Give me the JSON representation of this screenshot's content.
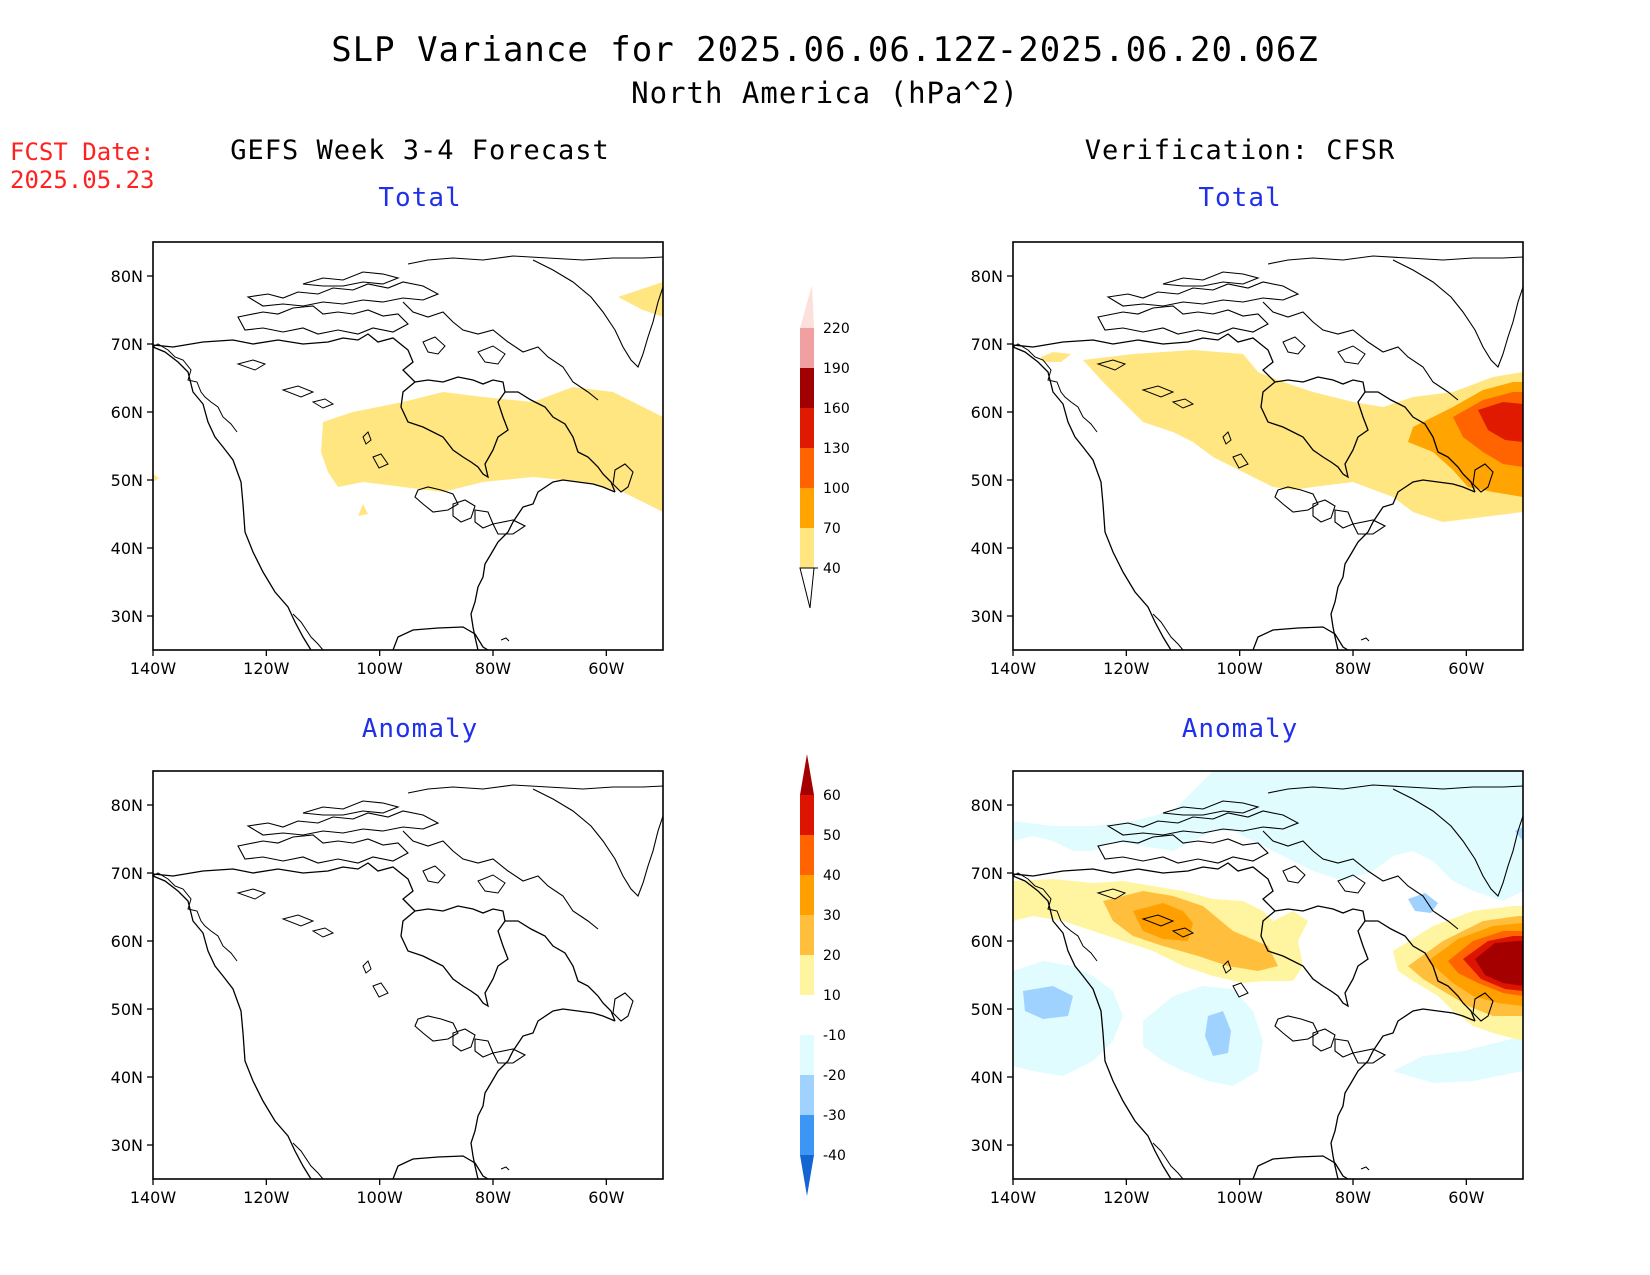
{
  "title": {
    "line1": "SLP Variance for 2025.06.06.12Z-2025.06.20.06Z",
    "line2": "North America (hPa^2)"
  },
  "fcst_date": {
    "label": "FCST Date:",
    "value": "2025.05.23"
  },
  "columns": {
    "left": "GEFS Week 3-4 Forecast",
    "right": "Verification: CFSR"
  },
  "panel_titles": {
    "total": "Total",
    "anomaly": "Anomaly"
  },
  "axes": {
    "lat_ticks": [
      "80N",
      "70N",
      "60N",
      "50N",
      "40N",
      "30N"
    ],
    "lon_ticks": [
      "140W",
      "120W",
      "100W",
      "80W",
      "60W"
    ],
    "lat_range": [
      25,
      85
    ],
    "lon_range": [
      -140,
      -50
    ]
  },
  "colorbar_total": {
    "levels": [
      "40",
      "70",
      "100",
      "130",
      "160",
      "190",
      "220"
    ],
    "colors": [
      "#ffe680",
      "#ffa400",
      "#ff6400",
      "#e01a00",
      "#a00000",
      "#f0a0a0",
      "#fde0dc"
    ]
  },
  "colorbar_anomaly": {
    "levels": [
      "60",
      "50",
      "40",
      "30",
      "20",
      "10",
      "-10",
      "-20",
      "-30",
      "-40"
    ],
    "colors": {
      "above_60": "#a50000",
      "50_60": "#dc1400",
      "40_50": "#ff6400",
      "30_40": "#ffa000",
      "20_30": "#ffbe3c",
      "10_20": "#fff5a0",
      "-10_10": "#ffffff",
      "-20_-10": "#e0fcff",
      "-30_-20": "#a0d2ff",
      "-40_-30": "#3c96f5",
      "below_-40": "#1464d2"
    }
  },
  "map_fields": {
    "gefs_total": "SLP variance >= 40 hPa^2 band across central and eastern Canada (Hudson Bay to Labrador)",
    "cfsr_total": "SLP variance >= 40 across Canada, maxima 130-160 near Labrador Sea",
    "gefs_anomaly": "no shaded anomalies",
    "cfsr_anomaly": "positive anomalies over western Canada and Labrador (>60), negative over NE Pacific and US plains"
  }
}
